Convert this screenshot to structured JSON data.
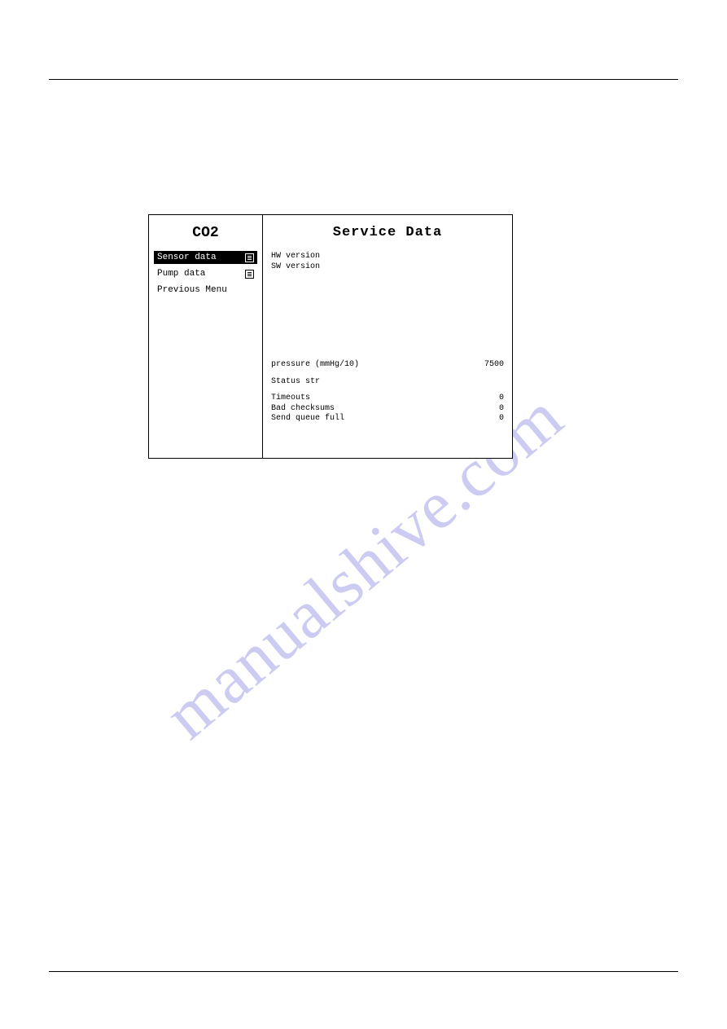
{
  "sidebar": {
    "title": "CO2",
    "items": [
      {
        "label": "Sensor data",
        "selected": true,
        "has_submenu": true
      },
      {
        "label": "Pump data",
        "selected": false,
        "has_submenu": true
      },
      {
        "label": "Previous Menu",
        "selected": false,
        "has_submenu": false
      }
    ]
  },
  "content": {
    "title": "Service Data",
    "top": [
      {
        "k": "HW version",
        "v": ""
      },
      {
        "k": "SW version",
        "v": ""
      }
    ],
    "mid": [
      {
        "k": "pressure (mmHg/10)",
        "v": "7500"
      }
    ],
    "status": [
      {
        "k": "Status str",
        "v": ""
      }
    ],
    "errs": [
      {
        "k": "Timeouts",
        "v": "0"
      },
      {
        "k": "Bad checksums",
        "v": "0"
      },
      {
        "k": "Send queue full",
        "v": "0"
      }
    ]
  },
  "watermark": "manualshive.com",
  "colors": {
    "watermark": "#8f8fe6",
    "border": "#000000",
    "bg": "#ffffff",
    "text": "#000000"
  }
}
